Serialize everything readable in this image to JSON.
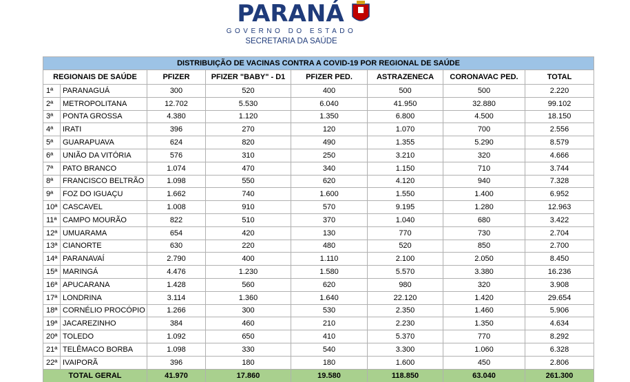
{
  "header": {
    "title": "PARANÁ",
    "subtitle": "GOVERNO DO ESTADO",
    "department": "SECRETARIA DA SAÚDE"
  },
  "table": {
    "title": "DISTRIBUIÇÃO DE VACINAS CONTRA A COVID-19 POR REGIONAL DE SAÚDE",
    "columns": [
      "REGIONAIS DE SAÚDE",
      "PFIZER",
      "PFIZER \"BABY\" - D1",
      "PFIZER PED.",
      "ASTRAZENECA",
      "CORONAVAC PED.",
      "TOTAL"
    ],
    "rows": [
      [
        "1ª",
        "PARANAGUÁ",
        "300",
        "520",
        "400",
        "500",
        "500",
        "2.220"
      ],
      [
        "2ª",
        "METROPOLITANA",
        "12.702",
        "5.530",
        "6.040",
        "41.950",
        "32.880",
        "99.102"
      ],
      [
        "3ª",
        "PONTA GROSSA",
        "4.380",
        "1.120",
        "1.350",
        "6.800",
        "4.500",
        "18.150"
      ],
      [
        "4ª",
        "IRATI",
        "396",
        "270",
        "120",
        "1.070",
        "700",
        "2.556"
      ],
      [
        "5ª",
        "GUARAPUAVA",
        "624",
        "820",
        "490",
        "1.355",
        "5.290",
        "8.579"
      ],
      [
        "6ª",
        "UNIÃO DA VITÓRIA",
        "576",
        "310",
        "250",
        "3.210",
        "320",
        "4.666"
      ],
      [
        "7ª",
        "PATO BRANCO",
        "1.074",
        "470",
        "340",
        "1.150",
        "710",
        "3.744"
      ],
      [
        "8ª",
        "FRANCISCO BELTRÃO",
        "1.098",
        "550",
        "620",
        "4.120",
        "940",
        "7.328"
      ],
      [
        "9ª",
        "FOZ DO IGUAÇU",
        "1.662",
        "740",
        "1.600",
        "1.550",
        "1.400",
        "6.952"
      ],
      [
        "10ª",
        "CASCAVEL",
        "1.008",
        "910",
        "570",
        "9.195",
        "1.280",
        "12.963"
      ],
      [
        "11ª",
        "CAMPO MOURÃO",
        "822",
        "510",
        "370",
        "1.040",
        "680",
        "3.422"
      ],
      [
        "12ª",
        "UMUARAMA",
        "654",
        "420",
        "130",
        "770",
        "730",
        "2.704"
      ],
      [
        "13ª",
        "CIANORTE",
        "630",
        "220",
        "480",
        "520",
        "850",
        "2.700"
      ],
      [
        "14ª",
        "PARANAVAÍ",
        "2.790",
        "400",
        "1.110",
        "2.100",
        "2.050",
        "8.450"
      ],
      [
        "15ª",
        "MARINGÁ",
        "4.476",
        "1.230",
        "1.580",
        "5.570",
        "3.380",
        "16.236"
      ],
      [
        "16ª",
        "APUCARANA",
        "1.428",
        "560",
        "620",
        "980",
        "320",
        "3.908"
      ],
      [
        "17ª",
        "LONDRINA",
        "3.114",
        "1.360",
        "1.640",
        "22.120",
        "1.420",
        "29.654"
      ],
      [
        "18ª",
        "CORNÉLIO PROCÓPIO",
        "1.266",
        "300",
        "530",
        "2.350",
        "1.460",
        "5.906"
      ],
      [
        "19ª",
        "JACAREZINHO",
        "384",
        "460",
        "210",
        "2.230",
        "1.350",
        "4.634"
      ],
      [
        "20ª",
        "TOLEDO",
        "1.092",
        "650",
        "410",
        "5.370",
        "770",
        "8.292"
      ],
      [
        "21ª",
        "TELÊMACO BORBA",
        "1.098",
        "330",
        "540",
        "3.300",
        "1.060",
        "6.328"
      ],
      [
        "22ª",
        "IVAIPORÃ",
        "396",
        "180",
        "180",
        "1.600",
        "450",
        "2.806"
      ]
    ],
    "total": [
      "TOTAL GERAL",
      "41.970",
      "17.860",
      "19.580",
      "118.850",
      "63.040",
      "261.300"
    ]
  }
}
